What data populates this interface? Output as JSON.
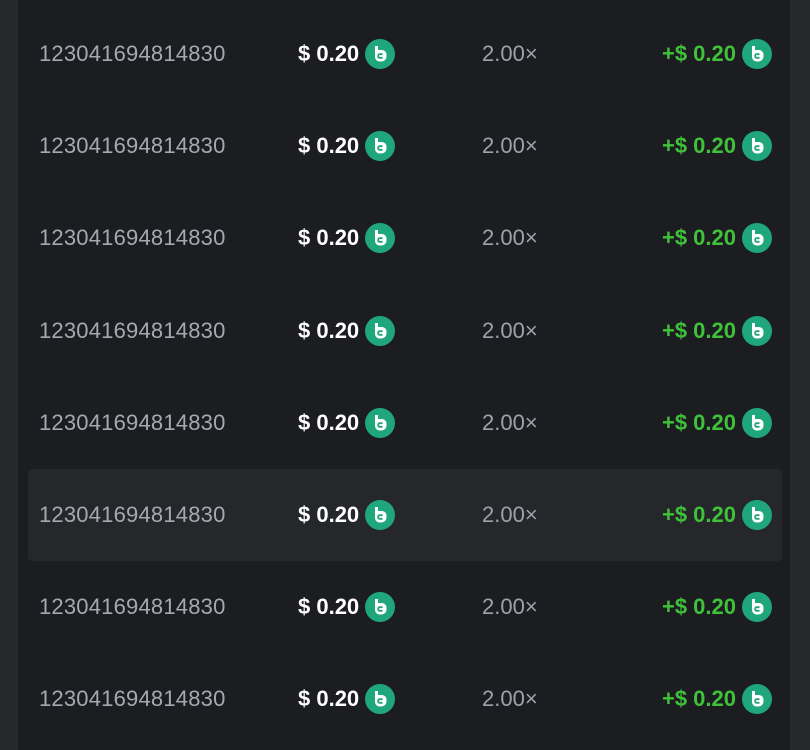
{
  "colors": {
    "accent_green": "#3fc13a",
    "coin": "#1fa67a",
    "panel": "#1c1d21"
  },
  "coin_icon": "bc-coin-icon",
  "highlighted_row": 5,
  "rows": [
    {
      "id": "123041694814830",
      "bet": "$ 0.20",
      "multiplier": "2.00×",
      "payout": "+$ 0.20"
    },
    {
      "id": "123041694814830",
      "bet": "$ 0.20",
      "multiplier": "2.00×",
      "payout": "+$ 0.20"
    },
    {
      "id": "123041694814830",
      "bet": "$ 0.20",
      "multiplier": "2.00×",
      "payout": "+$ 0.20"
    },
    {
      "id": "123041694814830",
      "bet": "$ 0.20",
      "multiplier": "2.00×",
      "payout": "+$ 0.20"
    },
    {
      "id": "123041694814830",
      "bet": "$ 0.20",
      "multiplier": "2.00×",
      "payout": "+$ 0.20"
    },
    {
      "id": "123041694814830",
      "bet": "$ 0.20",
      "multiplier": "2.00×",
      "payout": "+$ 0.20"
    },
    {
      "id": "123041694814830",
      "bet": "$ 0.20",
      "multiplier": "2.00×",
      "payout": "+$ 0.20"
    },
    {
      "id": "123041694814830",
      "bet": "$ 0.20",
      "multiplier": "2.00×",
      "payout": "+$ 0.20"
    }
  ]
}
